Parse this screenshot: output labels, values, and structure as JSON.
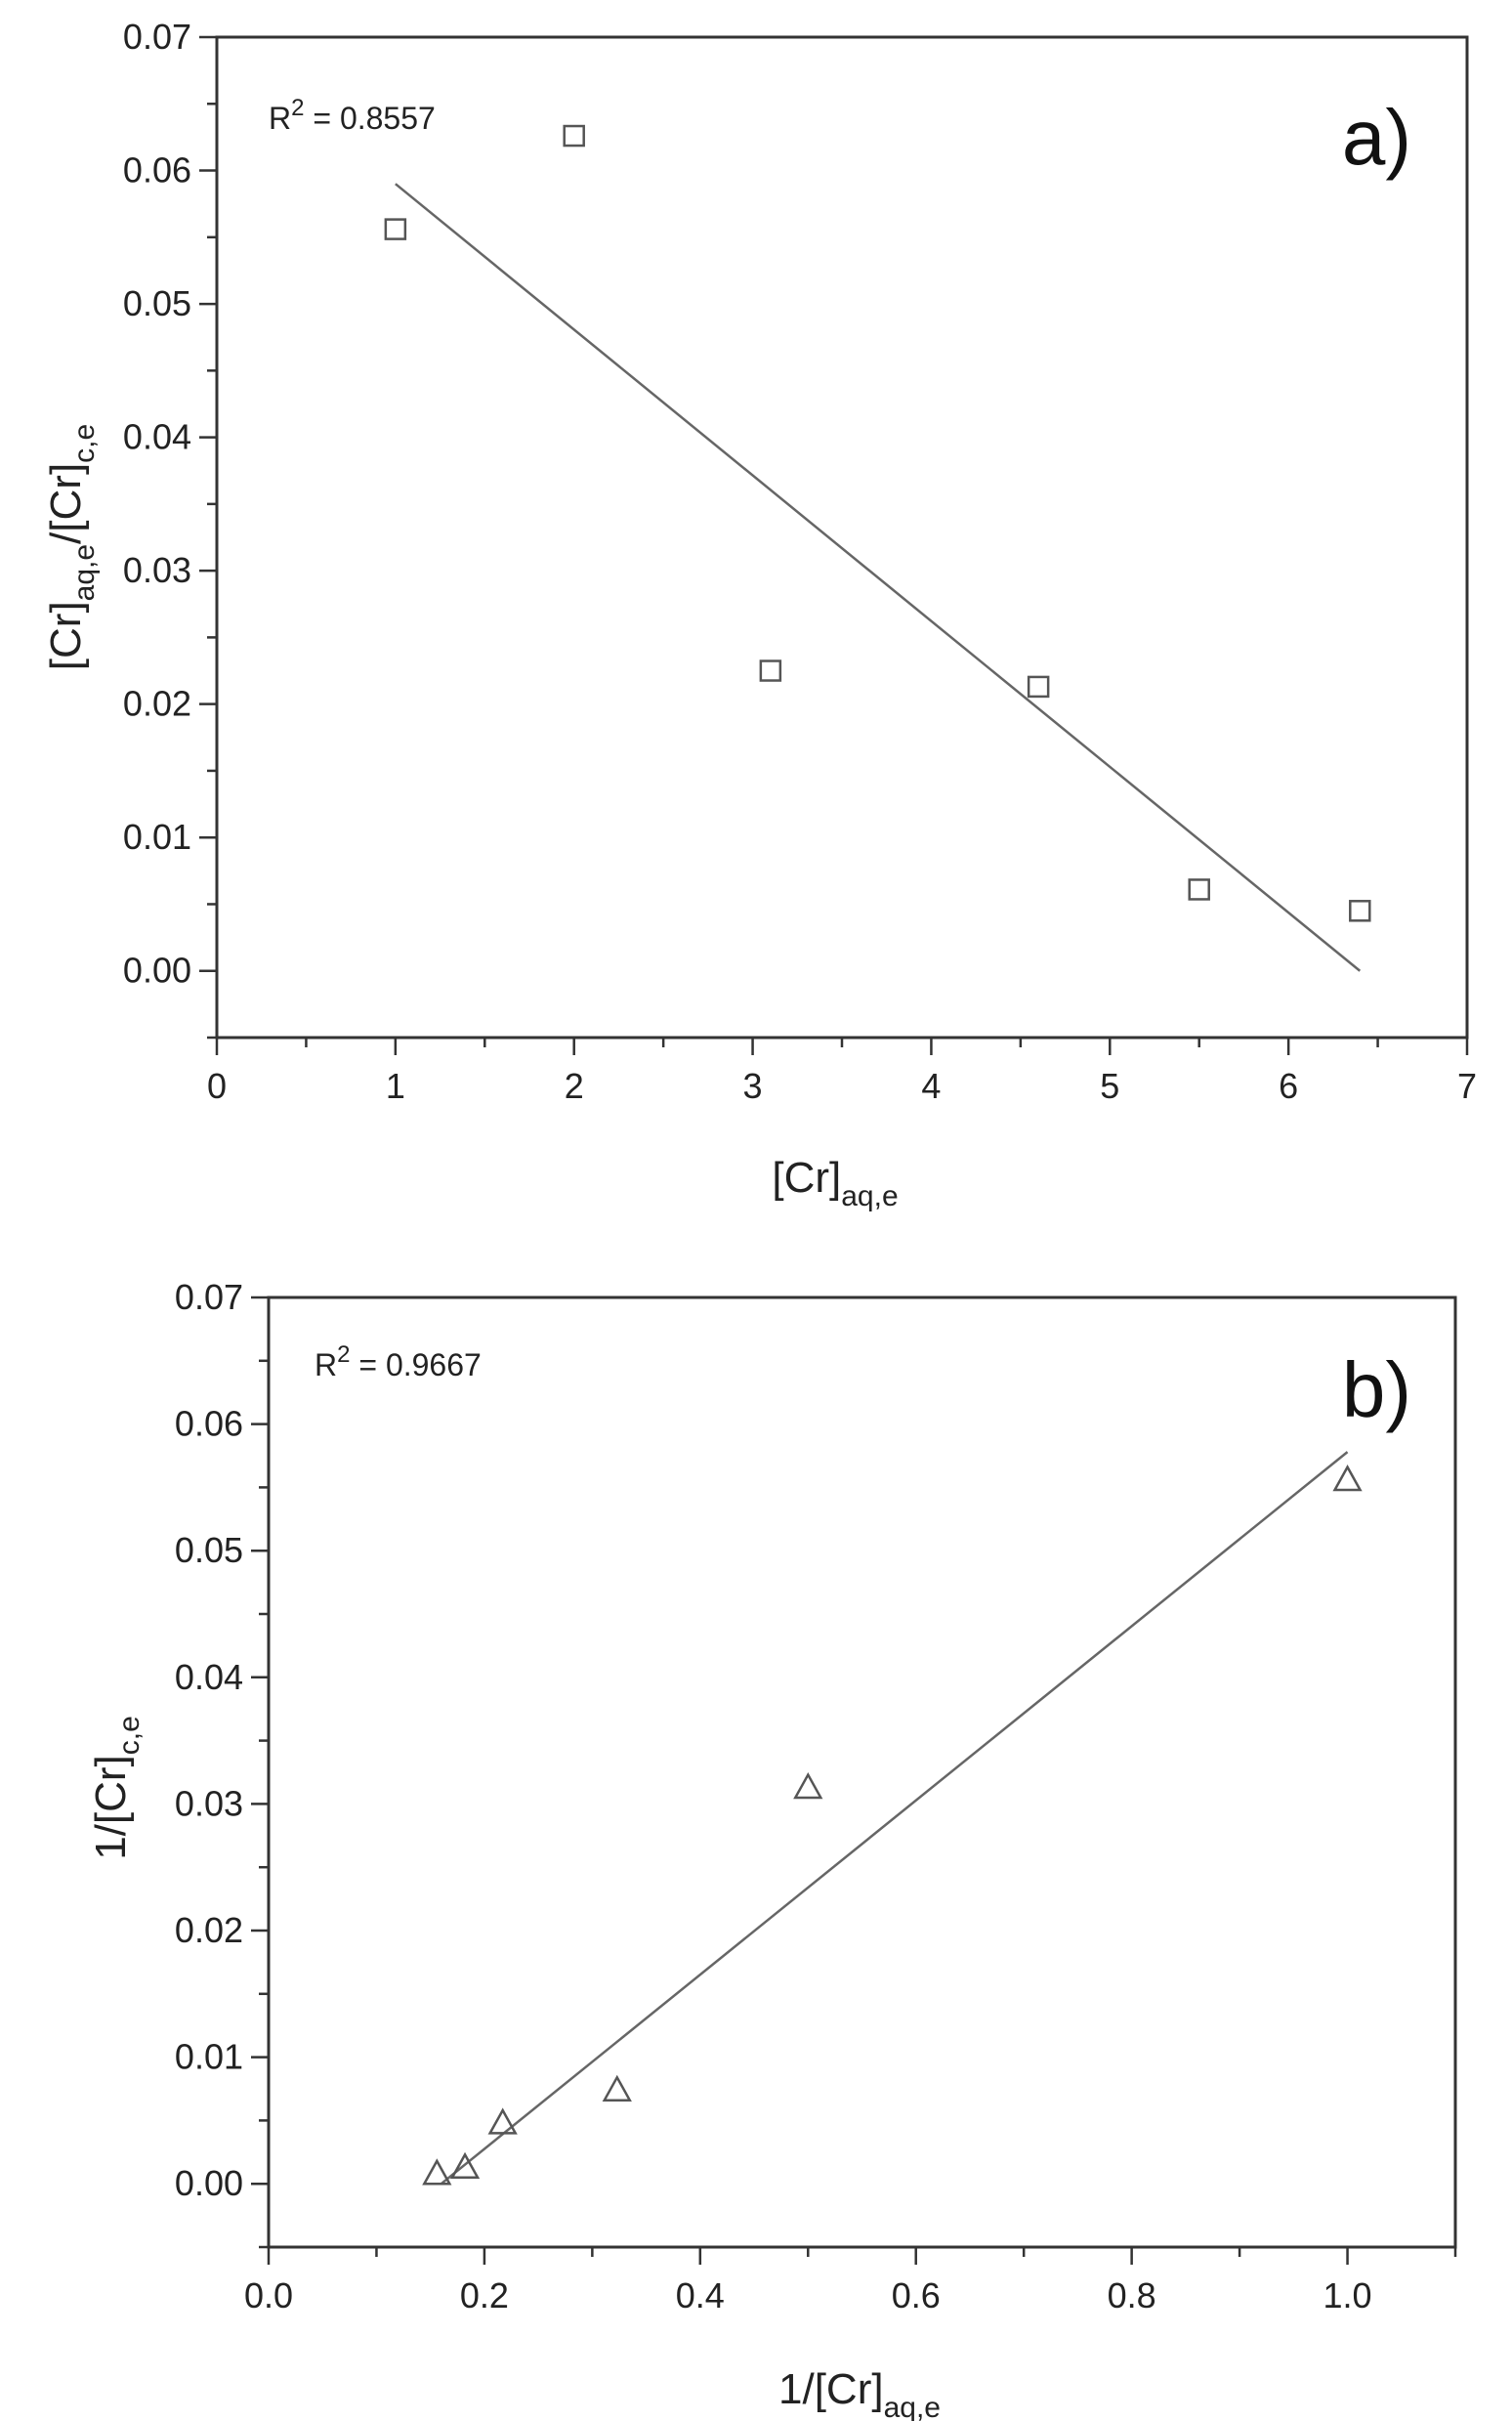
{
  "chart_data": [
    {
      "type": "scatter",
      "panel_label": "a)",
      "annotation": {
        "r2_prefix": "R",
        "r2_exp": "2",
        "r2_value": " = 0.8557"
      },
      "xlabel": {
        "main": "[Cr]",
        "sub": "aq,e"
      },
      "ylabel": {
        "part1": "[Cr]",
        "sub1": "aq,e",
        "part2": "/[Cr]",
        "sub2": "c,e"
      },
      "xlim": [
        0,
        7
      ],
      "ylim": [
        -0.005,
        0.07
      ],
      "xticks": [
        "0",
        "1",
        "2",
        "3",
        "4",
        "5",
        "6",
        "7"
      ],
      "yticks": [
        "0.00",
        "0.01",
        "0.02",
        "0.03",
        "0.04",
        "0.05",
        "0.06",
        "0.07"
      ],
      "marker": "square",
      "points": [
        {
          "x": 1.0,
          "y": 0.0556
        },
        {
          "x": 2.0,
          "y": 0.0626
        },
        {
          "x": 3.1,
          "y": 0.0225
        },
        {
          "x": 4.6,
          "y": 0.0213
        },
        {
          "x": 5.5,
          "y": 0.0061
        },
        {
          "x": 6.4,
          "y": 0.0045
        }
      ],
      "fit_line": [
        {
          "x": 1.0,
          "y": 0.059
        },
        {
          "x": 6.4,
          "y": 0.0
        }
      ]
    },
    {
      "type": "scatter",
      "panel_label": "b)",
      "annotation": {
        "r2_prefix": "R",
        "r2_exp": "2",
        "r2_value": " = 0.9667"
      },
      "xlabel": {
        "main": "1/[Cr]",
        "sub": "aq,e"
      },
      "ylabel": {
        "part1": "1/[Cr]",
        "sub1": "c,e",
        "part2": "",
        "sub2": ""
      },
      "xlim": [
        0,
        1.1
      ],
      "ylim": [
        -0.005,
        0.07
      ],
      "xticks": [
        "0.0",
        "0.2",
        "0.4",
        "0.6",
        "0.8",
        "1.0"
      ],
      "yticks": [
        "0.00",
        "0.01",
        "0.02",
        "0.03",
        "0.04",
        "0.05",
        "0.06",
        "0.07"
      ],
      "marker": "triangle",
      "points": [
        {
          "x": 0.156,
          "y": 0.0008
        },
        {
          "x": 0.182,
          "y": 0.0013
        },
        {
          "x": 0.217,
          "y": 0.0048
        },
        {
          "x": 0.323,
          "y": 0.0074
        },
        {
          "x": 0.5,
          "y": 0.0313
        },
        {
          "x": 1.0,
          "y": 0.0556
        }
      ],
      "fit_line": [
        {
          "x": 0.16,
          "y": 0.0
        },
        {
          "x": 1.0,
          "y": 0.0578
        }
      ]
    }
  ]
}
